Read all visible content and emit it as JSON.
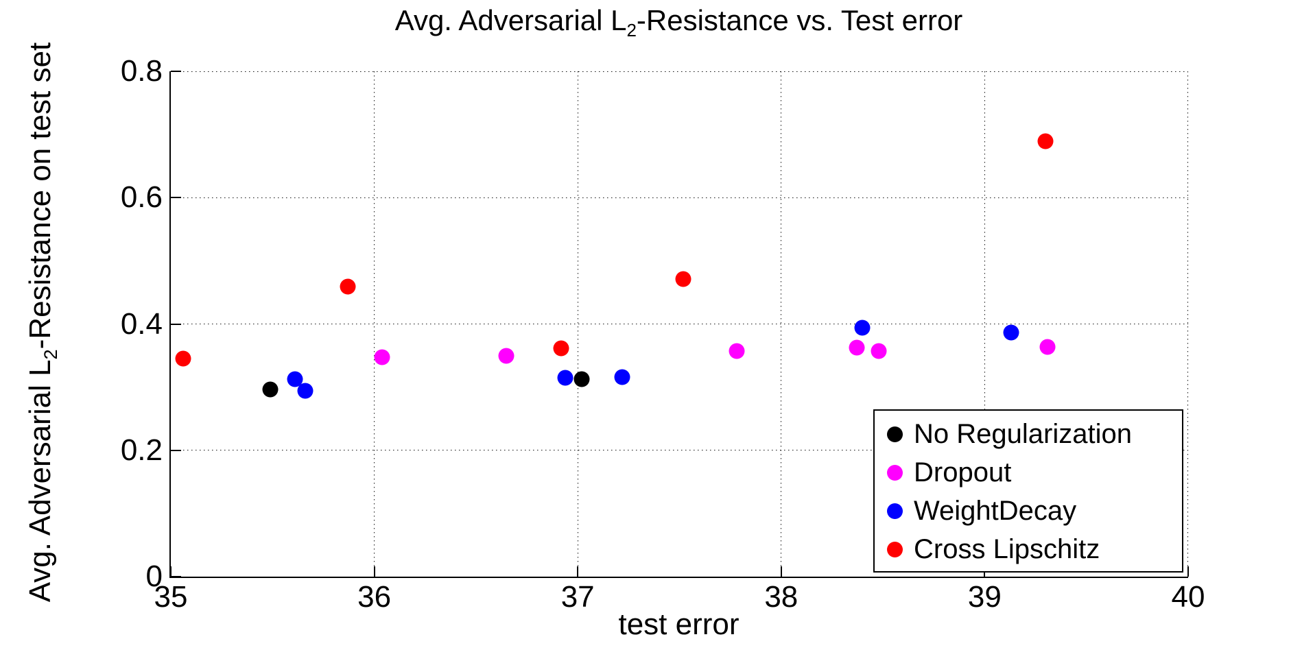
{
  "chart_data": {
    "type": "scatter",
    "title": {
      "prefix": "Avg. Adversarial L",
      "subscript": "2",
      "suffix": "-Resistance vs. Test error"
    },
    "xlabel": "test error",
    "ylabel": {
      "prefix": "Avg. Adversarial L",
      "subscript": "2",
      "suffix": "-Resistance on test set"
    },
    "xlim": [
      35,
      40
    ],
    "ylim": [
      0,
      0.8
    ],
    "xticks": [
      35,
      36,
      37,
      38,
      39,
      40
    ],
    "xtick_labels": [
      "35",
      "36",
      "37",
      "38",
      "39",
      "40"
    ],
    "yticks": [
      0,
      0.2,
      0.4,
      0.6,
      0.8
    ],
    "ytick_labels": [
      "0",
      "0.2",
      "0.4",
      "0.6",
      "0.8"
    ],
    "grid": true,
    "grid_style": "dotted",
    "legend_position": "bottom-right",
    "axis_color": "#000000",
    "background_color": "#FFFFFF",
    "series": [
      {
        "name": "No Regularization",
        "color": "#000000",
        "points": [
          [
            35.49,
            0.296
          ],
          [
            37.02,
            0.313
          ]
        ]
      },
      {
        "name": "Dropout",
        "color": "#FF00FF",
        "points": [
          [
            36.04,
            0.347
          ],
          [
            36.65,
            0.35
          ],
          [
            37.78,
            0.357
          ],
          [
            38.37,
            0.363
          ],
          [
            38.48,
            0.357
          ],
          [
            39.31,
            0.364
          ]
        ]
      },
      {
        "name": "WeightDecay",
        "color": "#0000FF",
        "points": [
          [
            35.61,
            0.313
          ],
          [
            35.66,
            0.294
          ],
          [
            36.94,
            0.315
          ],
          [
            37.22,
            0.316
          ],
          [
            38.4,
            0.394
          ],
          [
            39.13,
            0.386
          ]
        ]
      },
      {
        "name": "Cross Lipschitz",
        "color": "#FF0000",
        "points": [
          [
            35.06,
            0.345
          ],
          [
            35.87,
            0.459
          ],
          [
            36.92,
            0.362
          ],
          [
            37.52,
            0.471
          ],
          [
            39.3,
            0.689
          ]
        ]
      }
    ]
  }
}
